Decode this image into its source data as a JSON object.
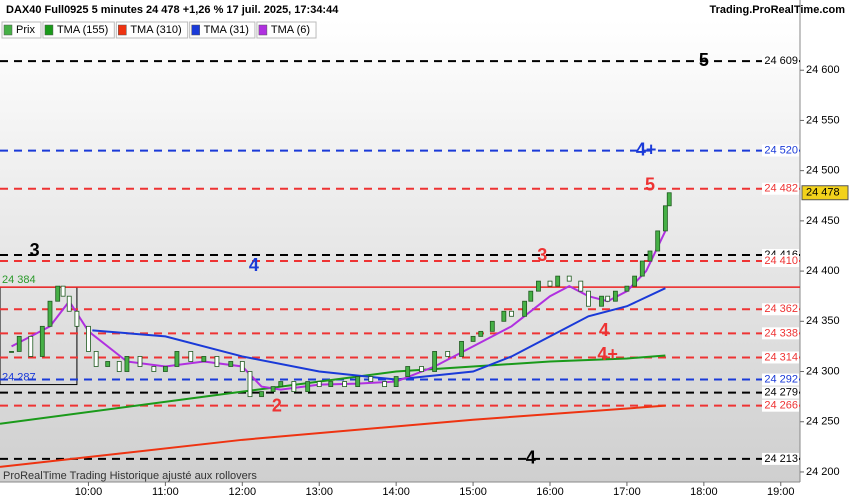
{
  "header": {
    "title": "DAX40 Full0925 5 minutes 24 478 +1,26 % 17 juil. 2025, 17:34:44",
    "site": "Trading.ProRealTime.com"
  },
  "footer": "ProRealTime Trading  Historique ajusté aux rollovers",
  "chart_data": {
    "type": "candlestick",
    "xlim": [
      8.85,
      19.25
    ],
    "ylim": [
      24190,
      24650
    ],
    "xticks": [
      {
        "value": 10,
        "label": "10:00"
      },
      {
        "value": 11,
        "label": "11:00"
      },
      {
        "value": 12,
        "label": "12:00"
      },
      {
        "value": 13,
        "label": "13:00"
      },
      {
        "value": 14,
        "label": "14:00"
      },
      {
        "value": 15,
        "label": "15:00"
      },
      {
        "value": 16,
        "label": "16:00"
      },
      {
        "value": 17,
        "label": "17:00"
      },
      {
        "value": 18,
        "label": "18:00"
      },
      {
        "value": 19,
        "label": "19:00"
      }
    ],
    "yticks": [
      {
        "value": 24200,
        "label": "24 200"
      },
      {
        "value": 24250,
        "label": "24 250"
      },
      {
        "value": 24300,
        "label": "24 300"
      },
      {
        "value": 24350,
        "label": "24 350"
      },
      {
        "value": 24400,
        "label": "24 400"
      },
      {
        "value": 24450,
        "label": "24 450"
      },
      {
        "value": 24500,
        "label": "24 500"
      },
      {
        "value": 24550,
        "label": "24 550"
      },
      {
        "value": 24600,
        "label": "24 600"
      }
    ],
    "price": {
      "name": "Prix",
      "up_color": "#46b046",
      "down_color": "#ffffff",
      "x": [
        9.0,
        9.1,
        9.25,
        9.4,
        9.5,
        9.6,
        9.67,
        9.75,
        9.85,
        10.0,
        10.1,
        10.25,
        10.4,
        10.5,
        10.67,
        10.85,
        11.0,
        11.15,
        11.33,
        11.5,
        11.67,
        11.85,
        12.0,
        12.1,
        12.25,
        12.4,
        12.5,
        12.67,
        12.85,
        13.0,
        13.15,
        13.33,
        13.5,
        13.67,
        13.85,
        14.0,
        14.15,
        14.33,
        14.5,
        14.67,
        14.85,
        15.0,
        15.1,
        15.25,
        15.4,
        15.5,
        15.67,
        15.75,
        15.85,
        16.0,
        16.1,
        16.25,
        16.4,
        16.5,
        16.67,
        16.75,
        16.85,
        17.0,
        17.1,
        17.2,
        17.3,
        17.4,
        17.5,
        17.55
      ],
      "values": [
        24320,
        24335,
        24315,
        24345,
        24370,
        24385,
        24375,
        24360,
        24345,
        24320,
        24305,
        24310,
        24300,
        24315,
        24305,
        24300,
        24305,
        24320,
        24310,
        24315,
        24305,
        24310,
        24300,
        24275,
        24280,
        24285,
        24290,
        24280,
        24290,
        24285,
        24290,
        24285,
        24295,
        24290,
        24285,
        24295,
        24305,
        24300,
        24320,
        24315,
        24330,
        24335,
        24340,
        24350,
        24360,
        24355,
        24370,
        24380,
        24390,
        24385,
        24395,
        24390,
        24380,
        24365,
        24375,
        24370,
        24380,
        24385,
        24395,
        24410,
        24420,
        24440,
        24465,
        24478
      ]
    },
    "series": [
      {
        "name": "TMA (155)",
        "color": "#1a9a1a",
        "x": [
          8.85,
          12.0,
          14.0,
          15.0,
          16.0,
          17.0,
          17.5
        ],
        "values": [
          24248,
          24280,
          24300,
          24305,
          24310,
          24313,
          24316
        ]
      },
      {
        "name": "TMA (310)",
        "color": "#ee3311",
        "x": [
          8.85,
          12.0,
          15.0,
          17.5
        ],
        "values": [
          24205,
          24232,
          24252,
          24266
        ]
      },
      {
        "name": "TMA (31)",
        "color": "#1a3ad8",
        "x": [
          10.05,
          11.0,
          12.0,
          13.0,
          14.0,
          15.0,
          15.5,
          16.0,
          16.5,
          17.0,
          17.5
        ],
        "values": [
          24341,
          24335,
          24315,
          24300,
          24292,
          24300,
          24315,
          24335,
          24355,
          24365,
          24383
        ]
      },
      {
        "name": "TMA (6)",
        "color": "#b030e0",
        "x": [
          9.0,
          9.5,
          9.75,
          10.0,
          10.5,
          11.0,
          11.5,
          12.0,
          12.25,
          12.5,
          13.0,
          13.5,
          14.0,
          14.5,
          15.0,
          15.5,
          16.0,
          16.25,
          16.5,
          16.75,
          17.0,
          17.25,
          17.5
        ],
        "values": [
          24325,
          24345,
          24370,
          24340,
          24310,
          24305,
          24310,
          24305,
          24285,
          24282,
          24287,
          24288,
          24290,
          24305,
          24325,
          24345,
          24375,
          24385,
          24375,
          24370,
          24380,
          24400,
          24440
        ]
      }
    ],
    "levels": [
      {
        "value": 24609,
        "label": "24 609",
        "color": "#000000"
      },
      {
        "value": 24520,
        "label": "24 520",
        "color": "#1a3ad8"
      },
      {
        "value": 24482,
        "label": "24 482",
        "color": "#ee3333"
      },
      {
        "value": 24416,
        "label": "24 416",
        "color": "#000000"
      },
      {
        "value": 24410,
        "label": "24 410",
        "color": "#ee3333"
      },
      {
        "value": 24362,
        "label": "24 362",
        "color": "#ee3333"
      },
      {
        "value": 24338,
        "label": "24 338",
        "color": "#ee3333"
      },
      {
        "value": 24314,
        "label": "24 314",
        "color": "#ee3333"
      },
      {
        "value": 24292,
        "label": "24 292",
        "color": "#1a3ad8"
      },
      {
        "value": 24279,
        "label": "24 279",
        "color": "#000000"
      },
      {
        "value": 24266,
        "label": "24 266",
        "color": "#ee3333"
      },
      {
        "value": 24213,
        "label": "24 213",
        "color": "#000000"
      }
    ],
    "reference_line": {
      "value": 24384,
      "color": "#ee2222"
    },
    "box": {
      "x": [
        8.85,
        9.85
      ],
      "top": {
        "value": 24384,
        "label": "24 384"
      },
      "bottom": {
        "value": 24287,
        "label": "24 287"
      }
    },
    "annotations": [
      {
        "text": "5",
        "x": 18.0,
        "y": 24609,
        "color": "#000000"
      },
      {
        "text": "4+",
        "x": 17.25,
        "y": 24520,
        "color": "#1a3ad8"
      },
      {
        "text": "5",
        "x": 17.3,
        "y": 24485,
        "color": "#ee3333"
      },
      {
        "text": "3",
        "x": 9.3,
        "y": 24420,
        "color": "#000000"
      },
      {
        "text": "4",
        "x": 12.15,
        "y": 24405,
        "color": "#1a3ad8"
      },
      {
        "text": "3",
        "x": 15.9,
        "y": 24415,
        "color": "#ee3333"
      },
      {
        "text": "4",
        "x": 16.7,
        "y": 24340,
        "color": "#ee3333"
      },
      {
        "text": "4+",
        "x": 16.75,
        "y": 24316,
        "color": "#ee3333"
      },
      {
        "text": "2",
        "x": 12.45,
        "y": 24265,
        "color": "#ee3333"
      },
      {
        "text": "4",
        "x": 15.75,
        "y": 24213,
        "color": "#000000"
      }
    ],
    "last_price": {
      "value": 24478,
      "label": "24 478"
    }
  }
}
